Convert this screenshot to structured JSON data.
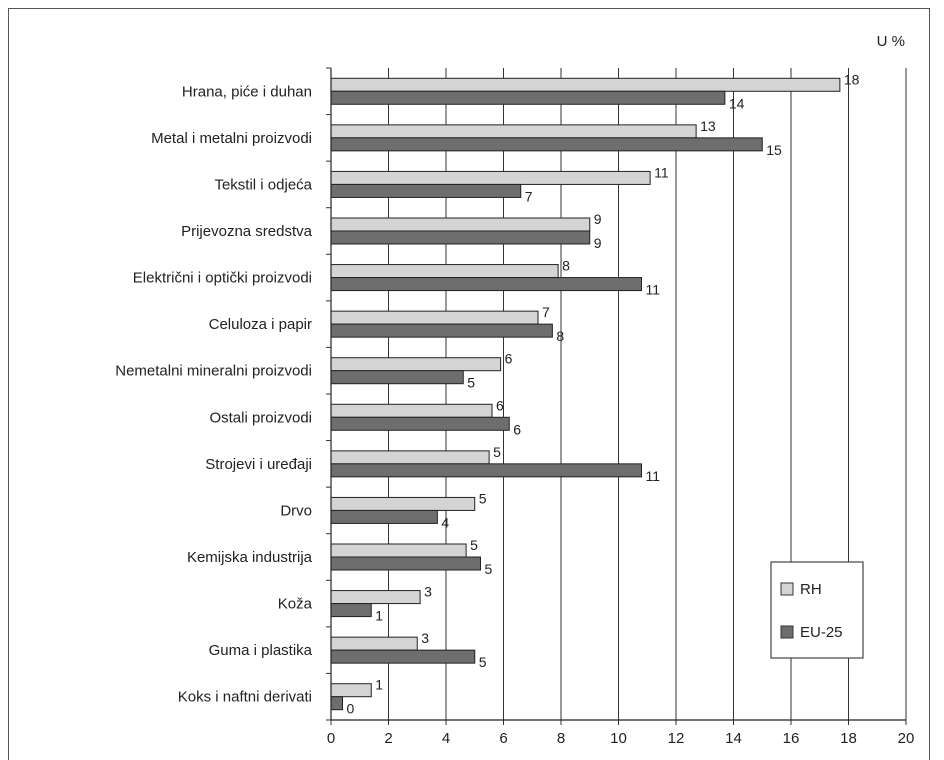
{
  "chart_data": {
    "type": "bar",
    "orientation": "horizontal",
    "unit": "U %",
    "categories": [
      "Hrana, piće i duhan",
      "Metal i metalni proizvodi",
      "Tekstil i odjeća",
      "Prijevozna sredstva",
      "Električni i optički proizvodi",
      "Celuloza i papir",
      "Nemetalni mineralni proizvodi",
      "Ostali proizvodi",
      "Strojevi i uređaji",
      "Drvo",
      "Kemijska industrija",
      "Koža",
      "Guma i plastika",
      "Koks i naftni derivati"
    ],
    "series": [
      {
        "name": "RH",
        "color": "#d4d4d4",
        "values": [
          17.7,
          12.7,
          11.1,
          9.0,
          7.9,
          7.2,
          5.9,
          5.6,
          5.5,
          5.0,
          4.7,
          3.1,
          3.0,
          1.4
        ],
        "labels": [
          "18",
          "13",
          "11",
          "9",
          "8",
          "7",
          "6",
          "6",
          "5",
          "5",
          "5",
          "3",
          "3",
          "1"
        ]
      },
      {
        "name": "EU-25",
        "color": "#6e6e6e",
        "values": [
          13.7,
          15.0,
          6.6,
          9.0,
          10.8,
          7.7,
          4.6,
          6.2,
          10.8,
          3.7,
          5.2,
          1.4,
          5.0,
          0.4
        ],
        "labels": [
          "14",
          "15",
          "7",
          "9",
          "11",
          "8",
          "5",
          "6",
          "11",
          "4",
          "5",
          "1",
          "5",
          "0"
        ]
      }
    ],
    "xlim": [
      0,
      20
    ],
    "xticks": [
      "0",
      "2",
      "4",
      "6",
      "8",
      "10",
      "12",
      "14",
      "16",
      "18",
      "20"
    ],
    "grid": "vertical",
    "legend_position": "bottom-right"
  }
}
